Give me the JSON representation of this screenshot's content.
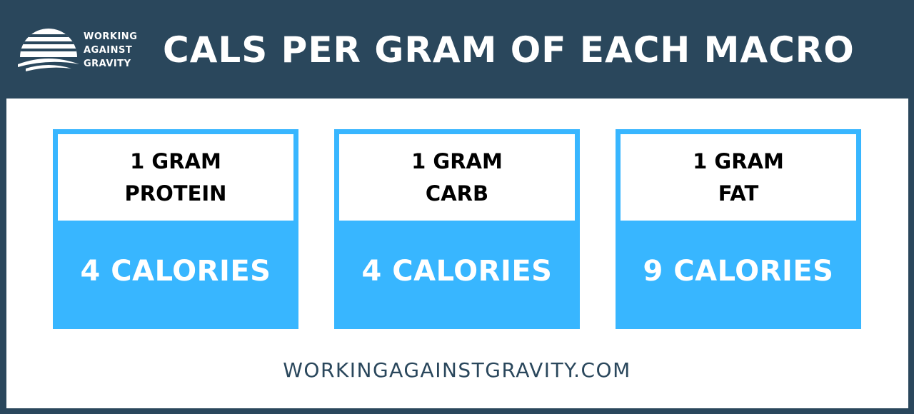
{
  "header": {
    "logo": [
      "WORKING",
      "AGAINST",
      "GRAVITY"
    ],
    "title": "CALS PER GRAM OF EACH MACRO"
  },
  "cards": [
    {
      "lines": [
        "1 GRAM",
        "PROTEIN"
      ],
      "value": "4 CALORIES"
    },
    {
      "lines": [
        "1 GRAM",
        "CARB"
      ],
      "value": "4 CALORIES"
    },
    {
      "lines": [
        "1 GRAM",
        "FAT"
      ],
      "value": "9 CALORIES"
    }
  ],
  "footer": "WORKINGAGAINSTGRAVITY.COM"
}
